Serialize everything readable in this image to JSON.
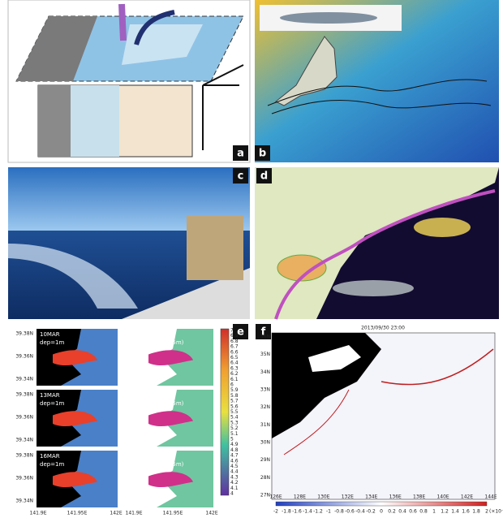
{
  "panels": [
    {
      "label": "a"
    },
    {
      "label": "b"
    },
    {
      "label": "c"
    },
    {
      "label": "d"
    },
    {
      "label": "e"
    },
    {
      "label": "f"
    }
  ],
  "panel_e": {
    "rows": [
      {
        "date": "10MAR",
        "left": "dep=1m",
        "right": "Bottom(>23.5m)"
      },
      {
        "date": "13MAR",
        "left": "dep=1m",
        "right": "Bottom(>23.5m)"
      },
      {
        "date": "16MAR",
        "left": "dep=1m",
        "right": "Bottom(>23.5m)"
      }
    ],
    "yticks": [
      "39.38N",
      "39.36N",
      "39.34N"
    ],
    "xticks": [
      "141.9E",
      "141.95E",
      "142E"
    ],
    "colorbar": [
      "7",
      "6.9",
      "6.8",
      "6.7",
      "6.6",
      "6.5",
      "6.4",
      "6.3",
      "6.2",
      "6.1",
      "6",
      "5.9",
      "5.8",
      "5.7",
      "5.6",
      "5.5",
      "5.4",
      "5.3",
      "5.2",
      "5.1",
      "5",
      "4.9",
      "4.8",
      "4.7",
      "4.6",
      "4.5",
      "4.4",
      "4.3",
      "4.2",
      "4.1",
      "4"
    ]
  },
  "panel_f": {
    "title": "2013/09/30 23:00",
    "yticks": [
      "36N",
      "35N",
      "34N",
      "33N",
      "32N",
      "31N",
      "30N",
      "29N",
      "28N",
      "27N"
    ],
    "xticks": [
      "126E",
      "128E",
      "130E",
      "132E",
      "134E",
      "136E",
      "138E",
      "140E",
      "142E",
      "144E"
    ],
    "colorbar": [
      "-2",
      "-1.8",
      "-1.6",
      "-1.4",
      "-1.2",
      "-1",
      "-0.8",
      "-0.6",
      "-0.4",
      "-0.2",
      "0",
      "0.2",
      "0.4",
      "0.6",
      "0.8",
      "1",
      "1.2",
      "1.4",
      "1.6",
      "1.8",
      "2"
    ],
    "unit": "(×10⁻⁴s⁻¹)"
  }
}
